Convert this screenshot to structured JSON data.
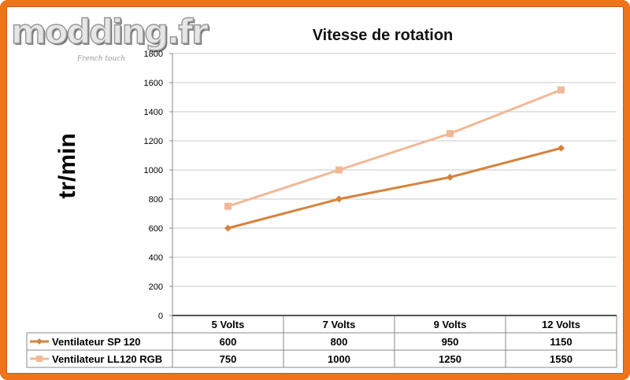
{
  "logo": {
    "text": "modding.fr",
    "tagline": "French touch"
  },
  "chart_data": {
    "type": "line",
    "title": "Vitesse de rotation",
    "ylabel": "tr/min",
    "xlabel": "",
    "categories": [
      "5 Volts",
      "7 Volts",
      "9 Volts",
      "12 Volts"
    ],
    "ylim": [
      0,
      1800
    ],
    "yticks": [
      0,
      200,
      400,
      600,
      800,
      1000,
      1200,
      1400,
      1600,
      1800
    ],
    "grid": true,
    "legend": "table-below",
    "series": [
      {
        "name": "Ventilateur SP 120",
        "values": [
          600,
          800,
          950,
          1150
        ],
        "color": "#d4843e",
        "marker": "diamond"
      },
      {
        "name": "Ventilateur LL120 RGB",
        "values": [
          750,
          1000,
          1250,
          1550
        ],
        "color": "#f2b896",
        "marker": "square"
      }
    ]
  }
}
